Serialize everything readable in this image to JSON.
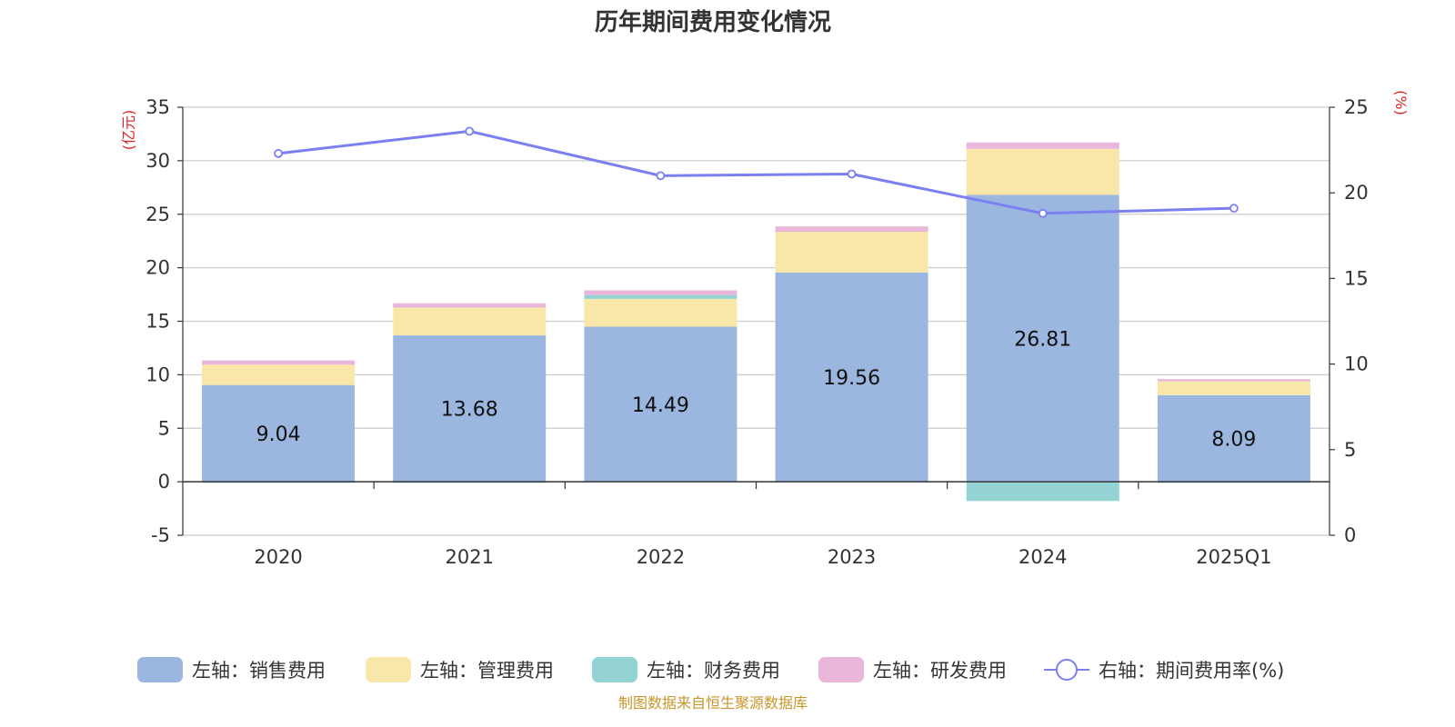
{
  "title": "历年期间费用变化情况",
  "source": "制图数据来自恒生聚源数据库",
  "colors": {
    "sales": "#9bb7e0",
    "admin": "#f8e7a9",
    "finance": "#93d3d3",
    "rd": "#e8b7da",
    "rate": "#7b7ff0",
    "unit": "#e02020",
    "source": "#c9962b"
  },
  "chart_data": {
    "type": "bar",
    "stacked": true,
    "title": "历年期间费用变化情况",
    "categories": [
      "2020",
      "2021",
      "2022",
      "2023",
      "2024",
      "2025Q1"
    ],
    "y_left": {
      "label": "(亿元)",
      "range": [
        -5,
        35
      ],
      "ticks": [
        "-5",
        "0",
        "5",
        "10",
        "15",
        "20",
        "25",
        "30",
        "35"
      ]
    },
    "y_right": {
      "label": "(%)",
      "range": [
        0,
        25
      ],
      "ticks": [
        "0",
        "5",
        "10",
        "15",
        "20",
        "25"
      ]
    },
    "series": [
      {
        "name": "左轴：销售费用",
        "key": "sales",
        "axis": "left",
        "type": "bar",
        "values": [
          9.04,
          13.68,
          14.49,
          19.56,
          26.81,
          8.09
        ],
        "labels": [
          "9.04",
          "13.68",
          "14.49",
          "19.56",
          "26.81",
          "8.09"
        ]
      },
      {
        "name": "左轴：管理费用",
        "key": "admin",
        "axis": "left",
        "type": "bar",
        "values": [
          1.9,
          2.6,
          2.6,
          3.8,
          4.3,
          1.3
        ]
      },
      {
        "name": "左轴：财务费用",
        "key": "finance",
        "axis": "left",
        "type": "bar",
        "values": [
          -0.1,
          -0.1,
          0.35,
          0.0,
          -1.8,
          -0.1
        ]
      },
      {
        "name": "左轴：研发费用",
        "key": "rd",
        "axis": "left",
        "type": "bar",
        "values": [
          0.4,
          0.4,
          0.45,
          0.5,
          0.6,
          0.2
        ]
      },
      {
        "name": "右轴：期间费用率(%)",
        "key": "rate",
        "axis": "right",
        "type": "line",
        "values": [
          22.3,
          23.6,
          21.0,
          21.1,
          18.8,
          19.1
        ]
      }
    ],
    "legend_position": "bottom",
    "grid": true
  }
}
